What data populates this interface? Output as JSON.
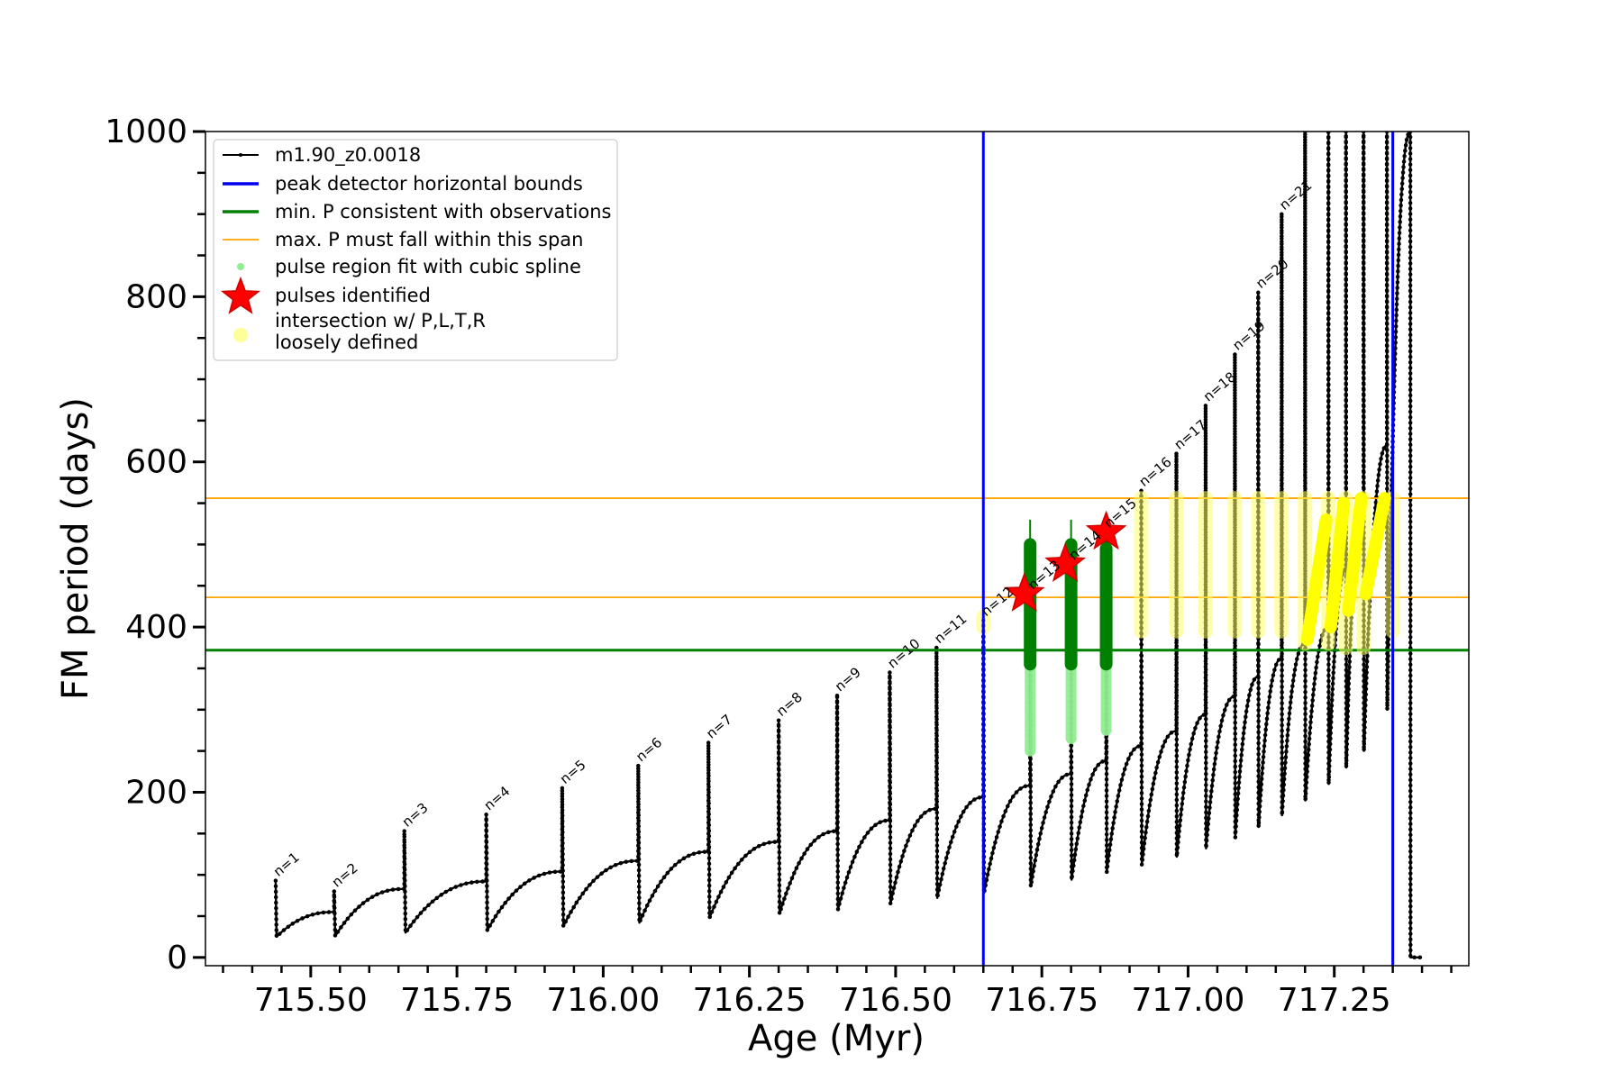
{
  "chart_data": {
    "type": "line",
    "title": "",
    "xlabel": "Age (Myr)",
    "ylabel": "FM period (days)",
    "xlim": [
      715.32,
      717.48
    ],
    "ylim": [
      -10,
      1000
    ],
    "x_ticks": [
      715.5,
      715.75,
      716.0,
      716.25,
      716.5,
      716.75,
      717.0,
      717.25
    ],
    "x_tick_labels": [
      "715.50",
      "715.75",
      "716.00",
      "716.25",
      "716.50",
      "716.75",
      "717.00",
      "717.25"
    ],
    "y_ticks": [
      0,
      200,
      400,
      600,
      800,
      1000
    ],
    "y_tick_labels": [
      "0",
      "200",
      "400",
      "600",
      "800",
      "1000"
    ],
    "grid": false,
    "legend_position": "top-left",
    "legend": [
      {
        "label": "m1.90_z0.0018",
        "marker": "line-dot",
        "color": "#000000"
      },
      {
        "label": "peak detector horizontal bounds",
        "marker": "line",
        "color": "#0000ee"
      },
      {
        "label": "min. P consistent with observations",
        "marker": "line",
        "color": "#008000"
      },
      {
        "label": "max. P must fall within this span",
        "marker": "thin-line",
        "color": "#ffa500"
      },
      {
        "label": "pulse region fit with cubic spline",
        "marker": "dot",
        "color": "#90ee90"
      },
      {
        "label": "pulses identified",
        "marker": "star",
        "color": "#ff0000"
      },
      {
        "label": "intersection w/ P,L,T,R",
        "label2": "loosely defined",
        "marker": "big-dot",
        "color": "#ffff99"
      }
    ],
    "vertical_lines": [
      {
        "x": 716.65,
        "color": "#0000ee",
        "name": "peak detector horizontal bounds"
      },
      {
        "x": 717.35,
        "color": "#0000ee",
        "name": "peak detector horizontal bounds"
      }
    ],
    "horizontal_lines": [
      {
        "y": 372,
        "color": "#008000",
        "name": "min. P consistent with observations"
      },
      {
        "y": 436,
        "color": "#ffa500",
        "name": "max. P must fall within this span"
      },
      {
        "y": 556,
        "color": "#ffa500",
        "name": "max. P must fall within this span"
      }
    ],
    "series": [
      {
        "name": "m1.90_z0.0018",
        "color": "#000000",
        "pulses": [
          {
            "n": "n=1",
            "x": 715.44,
            "peak": 93,
            "min": 25,
            "end": 55
          },
          {
            "n": "n=2",
            "x": 715.54,
            "peak": 80,
            "min": 26,
            "end": 83
          },
          {
            "n": "n=3",
            "x": 715.66,
            "peak": 153,
            "min": 30,
            "end": 92
          },
          {
            "n": "n=4",
            "x": 715.8,
            "peak": 173,
            "min": 33,
            "end": 104
          },
          {
            "n": "n=5",
            "x": 715.93,
            "peak": 205,
            "min": 38,
            "end": 117
          },
          {
            "n": "n=6",
            "x": 716.06,
            "peak": 232,
            "min": 42,
            "end": 128
          },
          {
            "n": "n=7",
            "x": 716.18,
            "peak": 260,
            "min": 48,
            "end": 140
          },
          {
            "n": "n=8",
            "x": 716.3,
            "peak": 287,
            "min": 53,
            "end": 153
          },
          {
            "n": "n=9",
            "x": 716.4,
            "peak": 317,
            "min": 58,
            "end": 166
          },
          {
            "n": "n=10",
            "x": 716.49,
            "peak": 345,
            "min": 65,
            "end": 180
          },
          {
            "n": "n=11",
            "x": 716.57,
            "peak": 375,
            "min": 72,
            "end": 194
          },
          {
            "n": "n=12",
            "x": 716.65,
            "peak": 408,
            "min": 78,
            "end": 208
          },
          {
            "n": "n=13",
            "x": 716.73,
            "peak": 440,
            "min": 86,
            "end": 222
          },
          {
            "n": "n=14",
            "x": 716.8,
            "peak": 476,
            "min": 94,
            "end": 238
          },
          {
            "n": "n=15",
            "x": 716.86,
            "peak": 515,
            "min": 103,
            "end": 256
          },
          {
            "n": "n=16",
            "x": 716.92,
            "peak": 565,
            "min": 112,
            "end": 274
          },
          {
            "n": "n=17",
            "x": 716.98,
            "peak": 610,
            "min": 122,
            "end": 294
          },
          {
            "n": "n=18",
            "x": 717.03,
            "peak": 668,
            "min": 132,
            "end": 316
          },
          {
            "n": "n=19",
            "x": 717.08,
            "peak": 730,
            "min": 145,
            "end": 340
          },
          {
            "n": "n=20",
            "x": 717.12,
            "peak": 805,
            "min": 158,
            "end": 362
          },
          {
            "n": "n=21",
            "x": 717.16,
            "peak": 900,
            "min": 172,
            "end": 380
          },
          {
            "n": "",
            "x": 717.2,
            "peak": 1000,
            "min": 190,
            "end": 400
          },
          {
            "n": "",
            "x": 717.24,
            "peak": 1000,
            "min": 210,
            "end": 470
          },
          {
            "n": "",
            "x": 717.27,
            "peak": 1000,
            "min": 230,
            "end": 560
          },
          {
            "n": "",
            "x": 717.3,
            "peak": 1000,
            "min": 250,
            "end": 620
          },
          {
            "n": "",
            "x": 717.34,
            "peak": 1000,
            "min": 300,
            "end": 1000
          },
          {
            "n": "",
            "x": 717.38,
            "peak": 1000,
            "min": 0,
            "end": 0
          }
        ]
      },
      {
        "name": "pulses identified",
        "color": "#ff0000",
        "points": [
          {
            "x": 716.72,
            "y": 440
          },
          {
            "x": 716.79,
            "y": 476
          },
          {
            "x": 716.86,
            "y": 515
          }
        ]
      },
      {
        "name": "min. P consistent with observations",
        "color": "#008000",
        "ranges": [
          {
            "x": 716.73,
            "y0": 355,
            "y1": 500
          },
          {
            "x": 716.8,
            "y0": 355,
            "y1": 500
          },
          {
            "x": 716.86,
            "y0": 355,
            "y1": 495
          }
        ]
      },
      {
        "name": "pulse region fit with cubic spline",
        "color": "#90ee90",
        "ranges": [
          {
            "x": 716.73,
            "y0": 250,
            "y1": 360
          },
          {
            "x": 716.8,
            "y0": 265,
            "y1": 360
          },
          {
            "x": 716.86,
            "y0": 275,
            "y1": 360
          }
        ]
      },
      {
        "name": "intersection w/ P,L,T,R",
        "color": "#ffff66",
        "ranges": [
          {
            "x": 716.65,
            "y0": 400,
            "y1": 412
          },
          {
            "x": 716.92,
            "y0": 395,
            "y1": 556
          },
          {
            "x": 716.98,
            "y0": 395,
            "y1": 556
          },
          {
            "x": 717.03,
            "y0": 395,
            "y1": 556
          },
          {
            "x": 717.08,
            "y0": 395,
            "y1": 556
          },
          {
            "x": 717.12,
            "y0": 395,
            "y1": 556
          },
          {
            "x": 717.16,
            "y0": 395,
            "y1": 556
          },
          {
            "x": 717.2,
            "y0": 380,
            "y1": 556
          },
          {
            "x": 717.24,
            "y0": 380,
            "y1": 556
          },
          {
            "x": 717.27,
            "y0": 375,
            "y1": 556
          },
          {
            "x": 717.3,
            "y0": 375,
            "y1": 556
          },
          {
            "x": 717.35,
            "y0": 395,
            "y1": 556
          }
        ]
      }
    ]
  }
}
